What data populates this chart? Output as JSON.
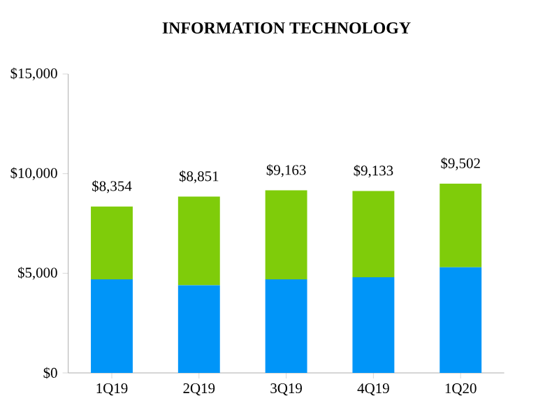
{
  "chart_data": {
    "type": "bar",
    "title": "INFORMATION TECHNOLOGY",
    "categories": [
      "1Q19",
      "2Q19",
      "3Q19",
      "4Q19",
      "1Q20"
    ],
    "series": [
      {
        "color": "#0095f8",
        "values": [
          4700,
          4400,
          4700,
          4800,
          5300
        ]
      },
      {
        "color": "#7fcc0a",
        "values": [
          3654,
          4451,
          4463,
          4333,
          4202
        ]
      }
    ],
    "stacked": true,
    "totals": [
      "$8,354",
      "$8,851",
      "$9,163",
      "$9,133",
      "$9,502"
    ],
    "ylim": [
      0,
      15000
    ],
    "yticks": [
      {
        "value": 0,
        "label": "$0"
      },
      {
        "value": 5000,
        "label": "$5,000"
      },
      {
        "value": 10000,
        "label": "$10,000"
      },
      {
        "value": 15000,
        "label": "$15,000"
      }
    ]
  }
}
